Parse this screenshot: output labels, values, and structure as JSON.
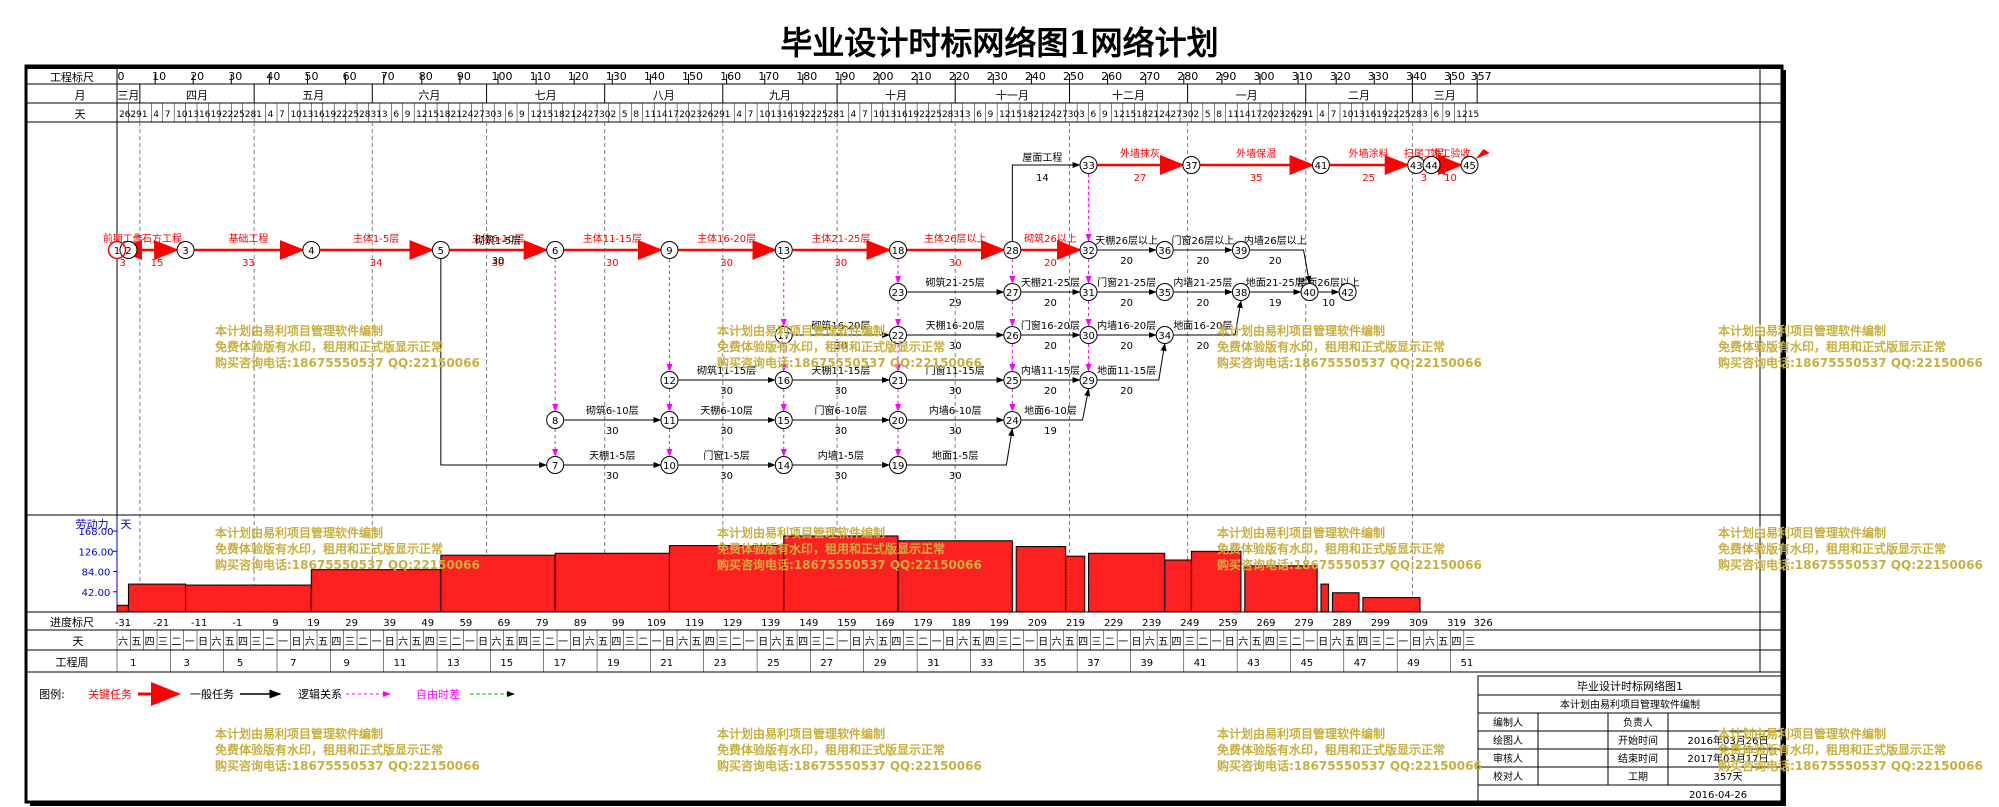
{
  "title": "毕业设计时标网络图1网络计划",
  "scale": {
    "row_labels": {
      "ticks": "工程标尺",
      "month": "月",
      "day": "天",
      "progress": "进度标尺",
      "weekday": "天",
      "week": "工程周"
    },
    "ticks": [
      "0",
      "10",
      "20",
      "30",
      "40",
      "50",
      "60",
      "70",
      "80",
      "90",
      "100",
      "110",
      "120",
      "130",
      "140",
      "150",
      "160",
      "170",
      "180",
      "190",
      "200",
      "210",
      "220",
      "230",
      "240",
      "250",
      "260",
      "270",
      "280",
      "290",
      "300",
      "310",
      "320",
      "330",
      "340",
      "350",
      "357"
    ],
    "months": [
      "三月",
      "四月",
      "五月",
      "六月",
      "七月",
      "八月",
      "九月",
      "十月",
      "十一月",
      "十二月",
      "一月",
      "二月",
      "三月"
    ],
    "month_days": [
      6,
      30,
      31,
      30,
      31,
      31,
      30,
      31,
      30,
      31,
      31,
      28,
      17
    ],
    "days_text": "26 29 1 4 7 10 13 16 19 22 25 28",
    "progress_labels": [
      "-31",
      "-21",
      "-11",
      "-1",
      "9",
      "19",
      "29",
      "39",
      "49",
      "59",
      "69",
      "79",
      "89",
      "99",
      "109",
      "119",
      "129",
      "139",
      "149",
      "159",
      "169",
      "179",
      "189",
      "199",
      "209",
      "219",
      "229",
      "239",
      "249",
      "259",
      "269",
      "279",
      "289",
      "299",
      "309",
      "319",
      "326"
    ],
    "weekdays": [
      "六",
      "五",
      "四",
      "三",
      "二",
      "一",
      "日"
    ],
    "week_numbers": [
      "1",
      "3",
      "5",
      "7",
      "9",
      "11",
      "13",
      "15",
      "17",
      "19",
      "21",
      "23",
      "25",
      "27",
      "29",
      "31",
      "33",
      "35",
      "37",
      "39",
      "41",
      "43",
      "45",
      "47",
      "49",
      "51"
    ]
  },
  "network": {
    "critical_path": [
      {
        "from": "1",
        "to": "2",
        "label": "前期工作",
        "dur": "3"
      },
      {
        "from": "2",
        "to": "3",
        "label": "土石方工程",
        "dur": "15"
      },
      {
        "from": "3",
        "to": "4",
        "label": "基础工程",
        "dur": "33"
      },
      {
        "from": "4",
        "to": "5",
        "label": "主体1-5层",
        "dur": "34"
      },
      {
        "from": "5",
        "to": "6",
        "label": "主体6-10层",
        "dur": "30"
      },
      {
        "from": "6",
        "to": "9",
        "label": "主体11-15层",
        "dur": "30"
      },
      {
        "from": "9",
        "to": "13",
        "label": "主体16-20层",
        "dur": "30"
      },
      {
        "from": "13",
        "to": "18",
        "label": "主体21-25层",
        "dur": "30"
      },
      {
        "from": "18",
        "to": "28",
        "label": "主体26层以上",
        "dur": "30"
      },
      {
        "from": "28",
        "to": "32",
        "label": "砌筑26以上",
        "dur": "20"
      },
      {
        "from": "33",
        "to": "37",
        "label": "外墙抹灰",
        "dur": "27"
      },
      {
        "from": "37",
        "to": "41",
        "label": "外墙保温",
        "dur": "35"
      },
      {
        "from": "41",
        "to": "43",
        "label": "外墙涂料",
        "dur": "25"
      },
      {
        "from": "43",
        "to": "44",
        "label": "扫尾工程",
        "dur": "3"
      },
      {
        "from": "44",
        "to": "45",
        "label": "竣工验收",
        "dur": "10"
      }
    ],
    "general_tasks": [
      {
        "label": "屋面工程",
        "dur": "14"
      },
      {
        "label": "砌筑1-5层",
        "dur": "30"
      },
      {
        "label": "砌筑6-10层",
        "dur": "30"
      },
      {
        "label": "砌筑11-15层",
        "dur": "30"
      },
      {
        "label": "砌筑16-20层",
        "dur": "30"
      },
      {
        "label": "砌筑21-25层",
        "dur": "29"
      },
      {
        "label": "天棚1-5层",
        "dur": "30"
      },
      {
        "label": "天棚6-10层",
        "dur": "30"
      },
      {
        "label": "天棚11-15层",
        "dur": "30"
      },
      {
        "label": "天棚16-20层",
        "dur": "30"
      },
      {
        "label": "天棚21-25层",
        "dur": "20"
      },
      {
        "label": "天棚26层以上",
        "dur": "20"
      },
      {
        "label": "门窗1-5层",
        "dur": "30"
      },
      {
        "label": "门窗6-10层",
        "dur": "30"
      },
      {
        "label": "门窗11-15层",
        "dur": "30"
      },
      {
        "label": "门窗16-20层",
        "dur": "20"
      },
      {
        "label": "门窗21-25层",
        "dur": "20"
      },
      {
        "label": "门窗26层以上",
        "dur": "20"
      },
      {
        "label": "内墙1-5层",
        "dur": "30"
      },
      {
        "label": "内墙6-10层",
        "dur": "30"
      },
      {
        "label": "内墙11-15层",
        "dur": "20"
      },
      {
        "label": "内墙16-20层",
        "dur": "20"
      },
      {
        "label": "内墙21-25层",
        "dur": "20"
      },
      {
        "label": "内墙26层以上",
        "dur": "20"
      },
      {
        "label": "地面1-5层",
        "dur": "30"
      },
      {
        "label": "地面6-10层",
        "dur": "19"
      },
      {
        "label": "地面11-15层",
        "dur": "20"
      },
      {
        "label": "地面16-20层",
        "dur": "20"
      },
      {
        "label": "地面21-25层",
        "dur": "19"
      },
      {
        "label": "地面26层以上",
        "dur": "10"
      }
    ]
  },
  "labor": {
    "title": "劳动力",
    "unit": "天",
    "y_ticks": [
      "168.00",
      "126.00",
      "84.00",
      "42.00"
    ],
    "bars": [
      {
        "start": 0,
        "end": 3,
        "value": 14
      },
      {
        "start": 3,
        "end": 18,
        "value": 58
      },
      {
        "start": 18,
        "end": 51,
        "value": 56
      },
      {
        "start": 51,
        "end": 85,
        "value": 88
      },
      {
        "start": 85,
        "end": 115,
        "value": 118
      },
      {
        "start": 115,
        "end": 145,
        "value": 122
      },
      {
        "start": 145,
        "end": 175,
        "value": 138
      },
      {
        "start": 175,
        "end": 205,
        "value": 158
      },
      {
        "start": 205,
        "end": 235,
        "value": 148
      },
      {
        "start": 236,
        "end": 249,
        "value": 136
      },
      {
        "start": 249,
        "end": 254,
        "value": 116
      },
      {
        "start": 255,
        "end": 275,
        "value": 122
      },
      {
        "start": 275,
        "end": 282,
        "value": 108
      },
      {
        "start": 282,
        "end": 295,
        "value": 126
      },
      {
        "start": 296,
        "end": 315,
        "value": 96
      },
      {
        "start": 316,
        "end": 318,
        "value": 58
      },
      {
        "start": 319,
        "end": 326,
        "value": 40
      },
      {
        "start": 327,
        "end": 342,
        "value": 30
      }
    ],
    "bar_color": "#ff2020"
  },
  "legend": {
    "title": "图例:",
    "critical": "关键任务",
    "general": "一般任务",
    "logic": "逻辑关系",
    "float": "自由时差"
  },
  "info_block": {
    "project_title": "毕业设计时标网络图1",
    "subtitle": "本计划由易利项目管理软件编制",
    "rows": [
      {
        "left": "编制人",
        "mid": "负责人",
        "right": ""
      },
      {
        "left": "绘图人",
        "mid": "开始时间",
        "right": "2016年03月26日"
      },
      {
        "left": "审核人",
        "mid": "结束时间",
        "right": "2017年03月17日"
      },
      {
        "left": "校对人",
        "mid": "工期",
        "right": "357天"
      }
    ],
    "date": "2016-04-26"
  },
  "watermark": {
    "line1": "本计划由易利项目管理软件编制",
    "line2": "免费体验版有水印，租用和正式版显示正常",
    "line3": "购买咨询电话:18675550537 QQ:22150066"
  },
  "colors": {
    "critical": "#ff0000",
    "general": "#000000",
    "float": "#ff00ff",
    "free_float_legend": "#00c000",
    "watermark": "#c8b040",
    "labor_axis": "#0000cc"
  }
}
